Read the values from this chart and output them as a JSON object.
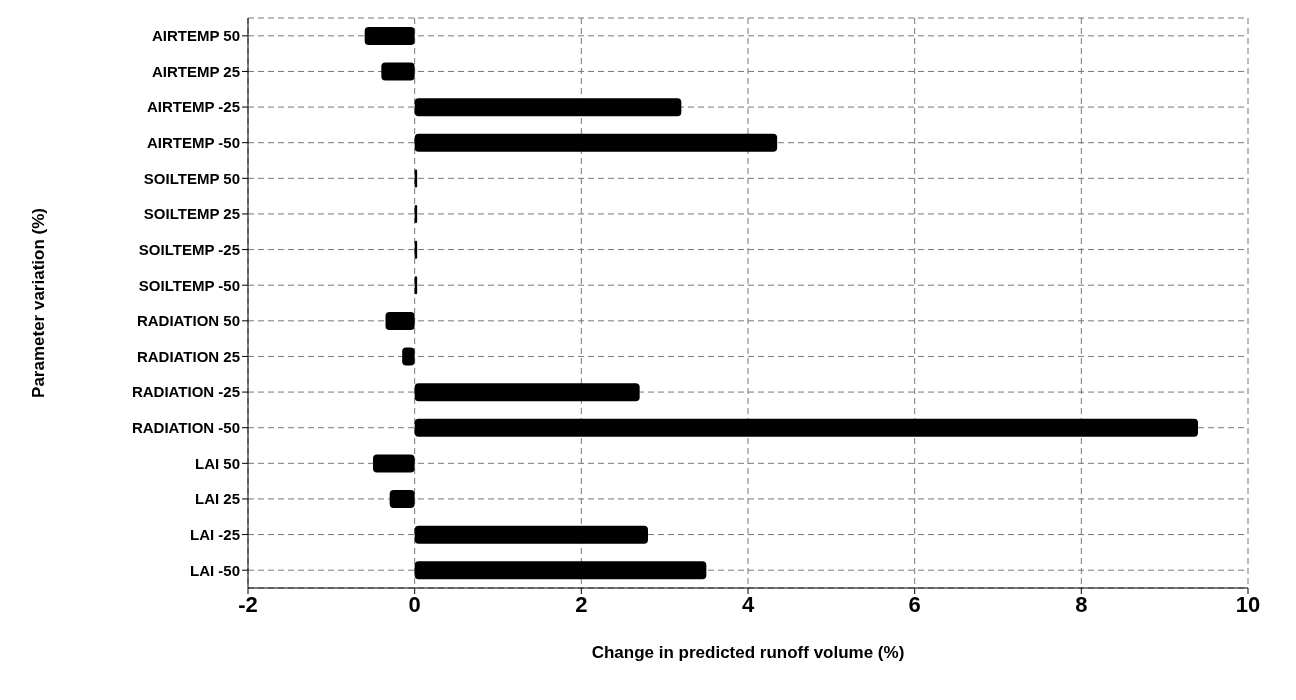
{
  "chart_data": {
    "type": "bar",
    "orientation": "horizontal",
    "xlabel": "Change in predicted runoff volume (%)",
    "ylabel": "Parameter variation (%)",
    "categories": [
      "AIRTEMP 50",
      "AIRTEMP 25",
      "AIRTEMP -25",
      "AIRTEMP -50",
      "SOILTEMP 50",
      "SOILTEMP 25",
      "SOILTEMP -25",
      "SOILTEMP -50",
      "RADIATION 50",
      "RADIATION 25",
      "RADIATION -25",
      "RADIATION -50",
      "LAI 50",
      "LAI 25",
      "LAI -25",
      "LAI -50"
    ],
    "values": [
      -0.6,
      -0.4,
      3.2,
      4.35,
      0.03,
      0.03,
      0.03,
      0.03,
      -0.35,
      -0.15,
      2.7,
      9.4,
      -0.5,
      -0.3,
      2.8,
      3.5
    ],
    "color": "#000000",
    "xlim": [
      -2,
      10
    ],
    "xticks": [
      -2,
      0,
      2,
      4,
      6,
      8,
      10
    ],
    "grid": true,
    "line_style": "dashed"
  }
}
